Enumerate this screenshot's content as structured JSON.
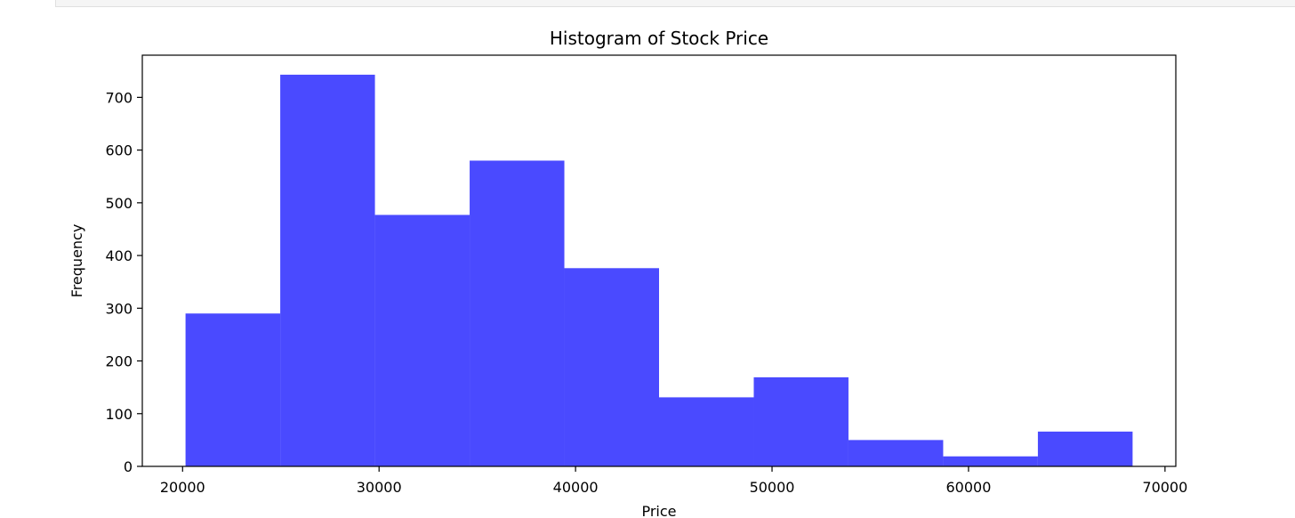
{
  "chart_data": {
    "type": "bar",
    "title": "Histogram of Stock Price",
    "xlabel": "Price",
    "ylabel": "Frequency",
    "bins": [
      {
        "x0": 20150,
        "x1": 24970,
        "value": 290
      },
      {
        "x0": 24970,
        "x1": 29790,
        "value": 743
      },
      {
        "x0": 29790,
        "x1": 34610,
        "value": 477
      },
      {
        "x0": 34610,
        "x1": 39430,
        "value": 580
      },
      {
        "x0": 39430,
        "x1": 44250,
        "value": 376
      },
      {
        "x0": 44250,
        "x1": 49070,
        "value": 131
      },
      {
        "x0": 49070,
        "x1": 53890,
        "value": 169
      },
      {
        "x0": 53890,
        "x1": 58710,
        "value": 50
      },
      {
        "x0": 58710,
        "x1": 63530,
        "value": 19
      },
      {
        "x0": 63530,
        "x1": 68350,
        "value": 66
      }
    ],
    "xlim": [
      17950,
      70550
    ],
    "ylim": [
      0,
      780
    ],
    "xticks": [
      20000,
      30000,
      40000,
      50000,
      60000,
      70000
    ],
    "yticks": [
      0,
      100,
      200,
      300,
      400,
      500,
      600,
      700
    ],
    "bar_color": "#4a4aff",
    "grid": false
  }
}
